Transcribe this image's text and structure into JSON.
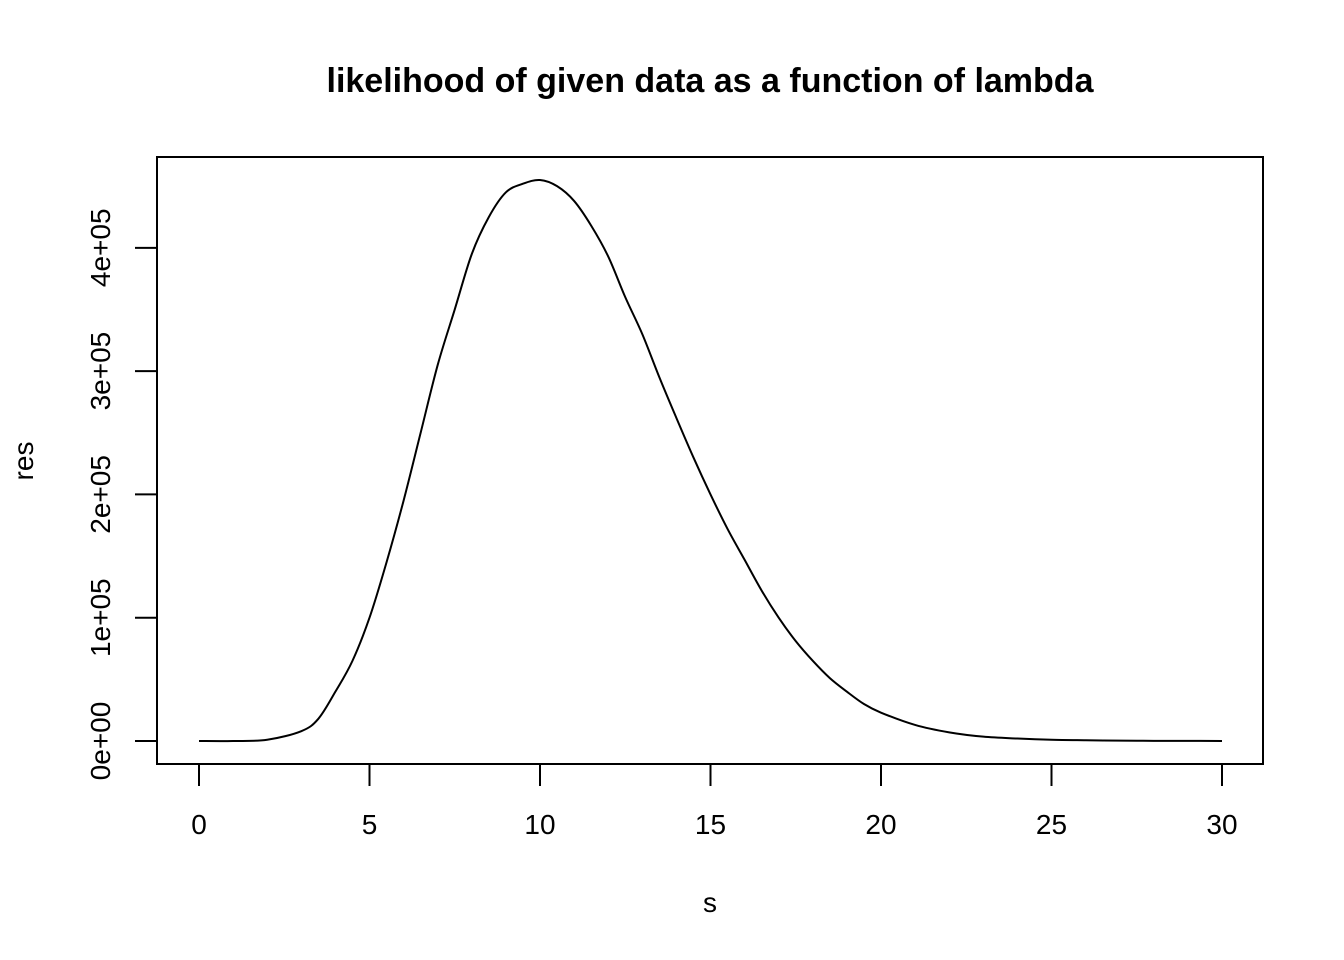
{
  "chart_data": {
    "type": "line",
    "title": "likelihood of given data as a function of lambda",
    "xlabel": "s",
    "ylabel": "res",
    "xlim": [
      0,
      30
    ],
    "ylim": [
      0,
      455000
    ],
    "x_ticks": [
      0,
      5,
      10,
      15,
      20,
      25,
      30
    ],
    "x_tick_labels": [
      "0",
      "5",
      "10",
      "15",
      "20",
      "25",
      "30"
    ],
    "y_ticks": [
      0,
      100000,
      200000,
      300000,
      400000
    ],
    "y_tick_labels": [
      "0e+00",
      "1e+05",
      "2e+05",
      "3e+05",
      "4e+05"
    ],
    "grid": false,
    "legend": "none",
    "line_color": "#000000",
    "series": [
      {
        "x": [
          0,
          1,
          2,
          3,
          3.5,
          4,
          4.5,
          5,
          5.5,
          6,
          6.5,
          7,
          7.5,
          8,
          8.5,
          9,
          9.5,
          10,
          10.5,
          11,
          11.5,
          12,
          12.5,
          13,
          13.5,
          14,
          14.5,
          15,
          15.5,
          16,
          16.5,
          17,
          17.5,
          18,
          18.5,
          19,
          19.5,
          20,
          21,
          22,
          23,
          24,
          25,
          26,
          27,
          28,
          29,
          30
        ],
        "y": [
          0,
          0,
          1000,
          8000,
          18000,
          40000,
          65000,
          100000,
          145000,
          195000,
          250000,
          305000,
          350000,
          395000,
          425000,
          445000,
          452000,
          455000,
          450000,
          438000,
          418000,
          393000,
          360000,
          330000,
          295000,
          262000,
          230000,
          200000,
          172000,
          147000,
          122000,
          100000,
          81000,
          65000,
          51000,
          40000,
          30000,
          23000,
          13000,
          7000,
          3500,
          2000,
          1000,
          600,
          300,
          150,
          80,
          0
        ]
      }
    ]
  }
}
